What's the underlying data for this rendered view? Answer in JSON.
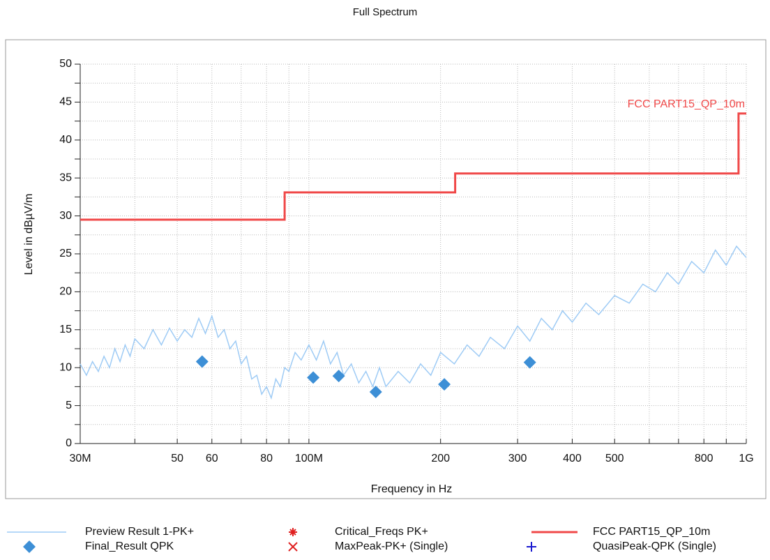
{
  "chart_data": {
    "type": "line",
    "title": "Full Spectrum",
    "x_label": "Frequency in Hz",
    "y_label": "Level in dBµV/m",
    "xscale": "log",
    "xlim": [
      30000000,
      1000000000
    ],
    "ylim": [
      0,
      50
    ],
    "xticks": [
      {
        "value": 30000000,
        "label": "30M"
      },
      {
        "value": 50000000,
        "label": "50"
      },
      {
        "value": 60000000,
        "label": "60"
      },
      {
        "value": 80000000,
        "label": "80"
      },
      {
        "value": 100000000,
        "label": "100M"
      },
      {
        "value": 200000000,
        "label": "200"
      },
      {
        "value": 300000000,
        "label": "300"
      },
      {
        "value": 400000000,
        "label": "400"
      },
      {
        "value": 500000000,
        "label": "500"
      },
      {
        "value": 800000000,
        "label": "800"
      },
      {
        "value": 1000000000,
        "label": "1G"
      }
    ],
    "xminorticks": [
      40000000,
      70000000,
      90000000,
      600000000,
      700000000,
      900000000
    ],
    "yticks": [
      0,
      5,
      10,
      15,
      20,
      25,
      30,
      35,
      40,
      45,
      50
    ],
    "yminorticks": [
      2.5,
      7.5,
      12.5,
      17.5,
      22.5,
      27.5,
      32.5,
      37.5,
      42.5,
      47.5
    ],
    "grid": true,
    "series": [
      {
        "name": "Preview Result 1-PK+",
        "color": "#9ecbf5",
        "style": "line",
        "x": [
          30000000,
          31000000,
          32000000,
          33000000,
          34000000,
          35000000,
          36000000,
          37000000,
          38000000,
          39000000,
          40000000,
          42000000,
          44000000,
          46000000,
          48000000,
          50000000,
          52000000,
          54000000,
          56000000,
          58000000,
          60000000,
          62000000,
          64000000,
          66000000,
          68000000,
          70000000,
          72000000,
          74000000,
          76000000,
          78000000,
          80000000,
          82000000,
          84000000,
          86000000,
          88000000,
          90000000,
          93000000,
          96000000,
          100000000,
          104000000,
          108000000,
          112000000,
          116000000,
          120000000,
          125000000,
          130000000,
          135000000,
          140000000,
          145000000,
          150000000,
          160000000,
          170000000,
          180000000,
          190000000,
          200000000,
          215000000,
          230000000,
          245000000,
          260000000,
          280000000,
          300000000,
          320000000,
          340000000,
          360000000,
          380000000,
          400000000,
          430000000,
          460000000,
          500000000,
          540000000,
          580000000,
          620000000,
          660000000,
          700000000,
          750000000,
          800000000,
          850000000,
          900000000,
          950000000,
          1000000000
        ],
        "values": [
          10.5,
          9,
          10.8,
          9.5,
          11.5,
          10,
          12.5,
          10.8,
          13,
          11.5,
          13.8,
          12.5,
          15,
          13,
          15.2,
          13.5,
          15,
          14,
          16.5,
          14.5,
          16.8,
          14,
          15,
          12.5,
          13.5,
          10.5,
          11.5,
          8.5,
          9,
          6.5,
          7.5,
          6,
          8.5,
          7.5,
          10,
          9.5,
          12,
          11,
          13,
          11,
          13.5,
          10.5,
          12,
          9,
          10.5,
          8,
          9.5,
          7.5,
          10,
          7.5,
          9.5,
          8,
          10.5,
          9,
          12,
          10.5,
          13,
          11.5,
          14,
          12.5,
          15.5,
          13.5,
          16.5,
          15,
          17.5,
          16,
          18.5,
          17,
          19.5,
          18.5,
          21,
          20,
          22.5,
          21,
          24,
          22.5,
          25.5,
          23.5,
          26,
          24.5
        ]
      },
      {
        "name": "Final_Result QPK",
        "color": "#3d8fd6",
        "style": "marker",
        "marker": "diamond",
        "x": [
          57000000,
          102300000,
          117000000,
          142200000,
          204000000,
          320000000
        ],
        "values": [
          10.8,
          8.7,
          8.9,
          6.8,
          7.8,
          10.7
        ]
      },
      {
        "name": "Critical_Freqs PK+",
        "color": "#e02020",
        "style": "marker",
        "marker": "asterisk",
        "x": [],
        "values": []
      },
      {
        "name": "MaxPeak-PK+ (Single)",
        "color": "#e02020",
        "style": "marker",
        "marker": "cross",
        "x": [],
        "values": []
      },
      {
        "name": "FCC PART15_QP_10m",
        "color": "#f04848",
        "style": "line",
        "width": 3,
        "x": [
          30000000,
          88000000,
          88000000,
          216000000,
          216000000,
          960000000,
          960000000,
          1000000000
        ],
        "values": [
          29.5,
          29.5,
          33.1,
          33.1,
          35.6,
          35.6,
          43.5,
          43.5
        ]
      },
      {
        "name": "QuasiPeak-QPK (Single)",
        "color": "#1a1ad0",
        "style": "marker",
        "marker": "plus",
        "x": [],
        "values": []
      }
    ]
  }
}
